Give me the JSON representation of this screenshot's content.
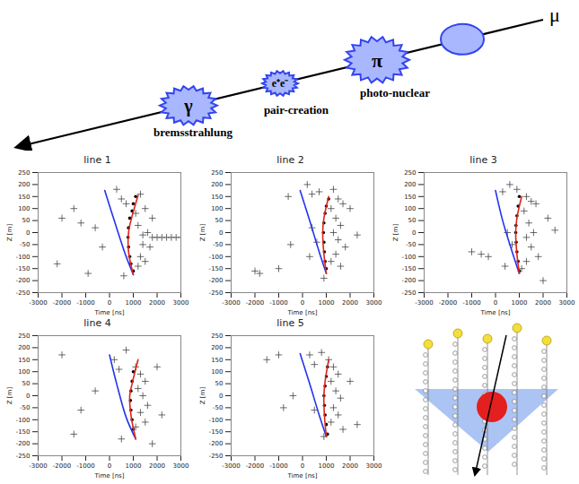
{
  "diagram": {
    "particle": "μ",
    "processes": [
      {
        "symbol": "γ",
        "label": "bremsstrahlung"
      },
      {
        "symbol": "e⁺e⁻",
        "label": "pair-creation"
      },
      {
        "symbol": "π",
        "label": "photo-nuclear"
      }
    ]
  },
  "chart_data": [
    {
      "type": "scatter",
      "title": "line 1",
      "x_label": "Time [ns]",
      "y_label": "Z [m]",
      "xlim": [
        -3000,
        3000
      ],
      "xticks": [
        -3000,
        -2000,
        -1000,
        0,
        1000,
        2000,
        3000
      ],
      "ylim": [
        -250,
        250
      ],
      "yticks": [
        -250,
        -200,
        -150,
        -100,
        -50,
        0,
        50,
        100,
        150,
        200,
        250
      ],
      "series": [
        {
          "type": "scatter",
          "marker": "plus",
          "color": "#444444",
          "points": [
            [
              -2000,
              60
            ],
            [
              -1500,
              100
            ],
            [
              -1200,
              40
            ],
            [
              -600,
              20
            ],
            [
              -300,
              -60
            ],
            [
              -2200,
              -130
            ],
            [
              300,
              180
            ],
            [
              500,
              140
            ],
            [
              700,
              120
            ],
            [
              1300,
              160
            ],
            [
              1500,
              100
            ],
            [
              1800,
              60
            ],
            [
              1200,
              30
            ],
            [
              1600,
              0
            ],
            [
              1800,
              -20
            ],
            [
              2000,
              -20
            ],
            [
              2200,
              -20
            ],
            [
              2400,
              -20
            ],
            [
              2600,
              -20
            ],
            [
              2800,
              -20
            ],
            [
              3000,
              -20
            ],
            [
              1400,
              -50
            ],
            [
              1300,
              -100
            ],
            [
              1500,
              -120
            ],
            [
              1200,
              -140
            ],
            [
              600,
              -180
            ],
            [
              -900,
              -170
            ],
            [
              1100,
              80
            ],
            [
              1400,
              -10
            ],
            [
              1700,
              -60
            ]
          ]
        },
        {
          "type": "scatter",
          "marker": "dot",
          "color": "#000000",
          "points": [
            [
              1100,
              150
            ],
            [
              1000,
              120
            ],
            [
              950,
              90
            ],
            [
              850,
              60
            ],
            [
              800,
              20
            ],
            [
              780,
              -20
            ],
            [
              800,
              -60
            ],
            [
              850,
              -100
            ],
            [
              900,
              -130
            ],
            [
              1000,
              -160
            ]
          ]
        },
        {
          "type": "line",
          "color": "#2233ee",
          "points": [
            [
              -200,
              175
            ],
            [
              200,
              50
            ],
            [
              700,
              -100
            ],
            [
              1000,
              -175
            ]
          ]
        },
        {
          "type": "line",
          "color": "#e02418",
          "points": [
            [
              1200,
              155
            ],
            [
              900,
              50
            ],
            [
              800,
              0
            ],
            [
              800,
              -80
            ],
            [
              1000,
              -175
            ]
          ]
        }
      ]
    },
    {
      "type": "scatter",
      "title": "line 2",
      "x_label": "Time [ns]",
      "y_label": "Z [m]",
      "xlim": [
        -3000,
        3000
      ],
      "xticks": [
        -3000,
        -2000,
        -1000,
        0,
        1000,
        2000,
        3000
      ],
      "ylim": [
        -250,
        250
      ],
      "yticks": [
        -250,
        -200,
        -150,
        -100,
        -50,
        0,
        50,
        100,
        150,
        200,
        250
      ],
      "series": [
        {
          "type": "scatter",
          "marker": "plus",
          "color": "#444444",
          "points": [
            [
              -2000,
              -160
            ],
            [
              -1800,
              -170
            ],
            [
              -1000,
              -150
            ],
            [
              -500,
              -50
            ],
            [
              -600,
              150
            ],
            [
              200,
              200
            ],
            [
              400,
              160
            ],
            [
              700,
              170
            ],
            [
              1300,
              180
            ],
            [
              1500,
              140
            ],
            [
              1700,
              120
            ],
            [
              1200,
              100
            ],
            [
              1400,
              60
            ],
            [
              1600,
              30
            ],
            [
              1300,
              0
            ],
            [
              1500,
              -30
            ],
            [
              1800,
              -60
            ],
            [
              1400,
              -90
            ],
            [
              1200,
              -120
            ],
            [
              1600,
              -140
            ],
            [
              600,
              -40
            ],
            [
              400,
              20
            ],
            [
              300,
              -100
            ],
            [
              900,
              -190
            ],
            [
              2000,
              100
            ],
            [
              2300,
              -10
            ]
          ]
        },
        {
          "type": "scatter",
          "marker": "dot",
          "color": "#000000",
          "points": [
            [
              1100,
              140
            ],
            [
              1000,
              110
            ],
            [
              950,
              80
            ],
            [
              900,
              40
            ],
            [
              880,
              0
            ],
            [
              900,
              -40
            ],
            [
              920,
              -80
            ],
            [
              950,
              -120
            ],
            [
              1000,
              -150
            ]
          ]
        },
        {
          "type": "line",
          "color": "#2233ee",
          "points": [
            [
              -100,
              175
            ],
            [
              300,
              50
            ],
            [
              700,
              -80
            ],
            [
              1000,
              -170
            ]
          ]
        },
        {
          "type": "line",
          "color": "#e02418",
          "points": [
            [
              1100,
              150
            ],
            [
              900,
              60
            ],
            [
              850,
              0
            ],
            [
              900,
              -90
            ],
            [
              1000,
              -170
            ]
          ]
        }
      ]
    },
    {
      "type": "scatter",
      "title": "line 3",
      "x_label": "Time [ns]",
      "y_label": "Z [m]",
      "xlim": [
        -3000,
        3000
      ],
      "xticks": [
        -3000,
        -2000,
        -1000,
        0,
        1000,
        2000,
        3000
      ],
      "ylim": [
        -250,
        250
      ],
      "yticks": [
        -250,
        -200,
        -150,
        -100,
        -50,
        0,
        50,
        100,
        150,
        200,
        250
      ],
      "series": [
        {
          "type": "scatter",
          "marker": "plus",
          "color": "#444444",
          "points": [
            [
              -1000,
              -80
            ],
            [
              -600,
              -90
            ],
            [
              -300,
              -100
            ],
            [
              300,
              170
            ],
            [
              600,
              200
            ],
            [
              900,
              180
            ],
            [
              1300,
              150
            ],
            [
              1500,
              130
            ],
            [
              1700,
              120
            ],
            [
              1200,
              90
            ],
            [
              1400,
              40
            ],
            [
              1600,
              0
            ],
            [
              1300,
              -20
            ],
            [
              1500,
              -60
            ],
            [
              1800,
              -100
            ],
            [
              1300,
              -120
            ],
            [
              1100,
              -150
            ],
            [
              2000,
              -200
            ],
            [
              500,
              0
            ],
            [
              700,
              -50
            ],
            [
              400,
              -140
            ],
            [
              2200,
              60
            ],
            [
              2500,
              10
            ]
          ]
        },
        {
          "type": "scatter",
          "marker": "dot",
          "color": "#000000",
          "points": [
            [
              1000,
              150
            ],
            [
              950,
              110
            ],
            [
              900,
              70
            ],
            [
              860,
              30
            ],
            [
              850,
              0
            ],
            [
              870,
              -40
            ],
            [
              900,
              -80
            ],
            [
              950,
              -120
            ],
            [
              1000,
              -160
            ]
          ]
        },
        {
          "type": "line",
          "color": "#2233ee",
          "points": [
            [
              0,
              175
            ],
            [
              300,
              50
            ],
            [
              700,
              -80
            ],
            [
              1000,
              -170
            ]
          ]
        },
        {
          "type": "line",
          "color": "#e02418",
          "points": [
            [
              1100,
              150
            ],
            [
              900,
              60
            ],
            [
              850,
              0
            ],
            [
              900,
              -90
            ],
            [
              1000,
              -170
            ]
          ]
        }
      ]
    },
    {
      "type": "scatter",
      "title": "line 4",
      "x_label": "Time [ns]",
      "y_label": "Z [m]",
      "xlim": [
        -3000,
        3000
      ],
      "xticks": [
        -3000,
        -2000,
        -1000,
        0,
        1000,
        2000,
        3000
      ],
      "ylim": [
        -250,
        250
      ],
      "yticks": [
        -250,
        -200,
        -150,
        -100,
        -50,
        0,
        50,
        100,
        150,
        200,
        250
      ],
      "series": [
        {
          "type": "scatter",
          "marker": "plus",
          "color": "#444444",
          "points": [
            [
              -2000,
              170
            ],
            [
              -1500,
              -160
            ],
            [
              -1200,
              -60
            ],
            [
              -600,
              20
            ],
            [
              200,
              150
            ],
            [
              400,
              110
            ],
            [
              700,
              190
            ],
            [
              1100,
              120
            ],
            [
              1300,
              90
            ],
            [
              1500,
              60
            ],
            [
              1200,
              30
            ],
            [
              1400,
              0
            ],
            [
              1600,
              -40
            ],
            [
              1300,
              -70
            ],
            [
              1500,
              -110
            ],
            [
              1100,
              -130
            ],
            [
              1800,
              -200
            ],
            [
              2000,
              120
            ],
            [
              2200,
              -80
            ],
            [
              500,
              -180
            ]
          ]
        },
        {
          "type": "scatter",
          "marker": "dot",
          "color": "#000000",
          "points": [
            [
              1000,
              100
            ],
            [
              950,
              60
            ],
            [
              900,
              20
            ],
            [
              880,
              -20
            ],
            [
              900,
              -60
            ],
            [
              950,
              -100
            ],
            [
              1000,
              -140
            ]
          ]
        },
        {
          "type": "line",
          "color": "#2233ee",
          "points": [
            [
              0,
              170
            ],
            [
              300,
              50
            ],
            [
              700,
              -90
            ],
            [
              1100,
              -180
            ]
          ]
        },
        {
          "type": "line",
          "color": "#e02418",
          "points": [
            [
              1200,
              150
            ],
            [
              950,
              50
            ],
            [
              850,
              0
            ],
            [
              900,
              -80
            ],
            [
              1100,
              -180
            ]
          ]
        }
      ]
    },
    {
      "type": "scatter",
      "title": "line 5",
      "x_label": "Time [ns]",
      "y_label": "Z [m]",
      "xlim": [
        -3000,
        3000
      ],
      "xticks": [
        -3000,
        -2000,
        -1000,
        0,
        1000,
        2000,
        3000
      ],
      "ylim": [
        -250,
        250
      ],
      "yticks": [
        -250,
        -200,
        -150,
        -100,
        -50,
        0,
        50,
        100,
        150,
        200,
        250
      ],
      "series": [
        {
          "type": "scatter",
          "marker": "plus",
          "color": "#444444",
          "points": [
            [
              -1500,
              150
            ],
            [
              -1000,
              170
            ],
            [
              -800,
              -50
            ],
            [
              -400,
              0
            ],
            [
              300,
              170
            ],
            [
              500,
              130
            ],
            [
              800,
              180
            ],
            [
              1100,
              150
            ],
            [
              1300,
              120
            ],
            [
              1500,
              90
            ],
            [
              1200,
              60
            ],
            [
              1400,
              20
            ],
            [
              1600,
              -10
            ],
            [
              1300,
              -50
            ],
            [
              1500,
              -80
            ],
            [
              1200,
              -110
            ],
            [
              1700,
              -140
            ],
            [
              900,
              -170
            ],
            [
              2000,
              60
            ],
            [
              2300,
              -120
            ],
            [
              500,
              -60
            ]
          ]
        },
        {
          "type": "scatter",
          "marker": "dot",
          "color": "#000000",
          "points": [
            [
              1050,
              120
            ],
            [
              1000,
              80
            ],
            [
              950,
              40
            ],
            [
              900,
              0
            ],
            [
              920,
              -40
            ],
            [
              950,
              -80
            ],
            [
              1000,
              -120
            ],
            [
              1050,
              -160
            ]
          ]
        },
        {
          "type": "line",
          "color": "#2233ee",
          "points": [
            [
              -100,
              175
            ],
            [
              300,
              50
            ],
            [
              700,
              -80
            ],
            [
              1000,
              -170
            ]
          ]
        },
        {
          "type": "line",
          "color": "#e02418",
          "points": [
            [
              1100,
              150
            ],
            [
              950,
              60
            ],
            [
              900,
              0
            ],
            [
              920,
              -80
            ],
            [
              1000,
              -170
            ]
          ]
        }
      ]
    }
  ]
}
